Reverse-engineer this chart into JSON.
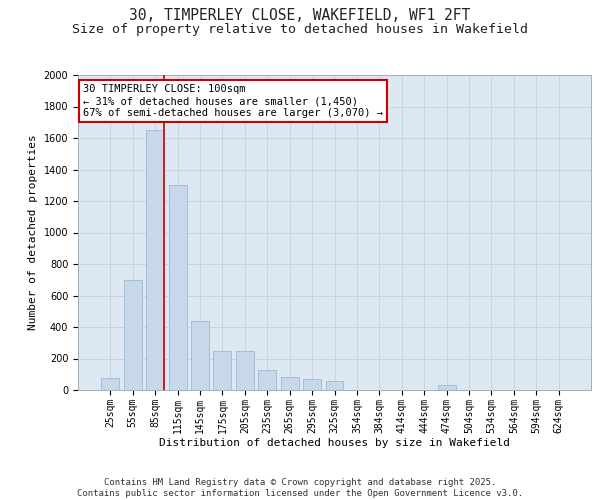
{
  "title_line1": "30, TIMPERLEY CLOSE, WAKEFIELD, WF1 2FT",
  "title_line2": "Size of property relative to detached houses in Wakefield",
  "xlabel": "Distribution of detached houses by size in Wakefield",
  "ylabel": "Number of detached properties",
  "categories": [
    "25sqm",
    "55sqm",
    "85sqm",
    "115sqm",
    "145sqm",
    "175sqm",
    "205sqm",
    "235sqm",
    "265sqm",
    "295sqm",
    "325sqm",
    "354sqm",
    "384sqm",
    "414sqm",
    "444sqm",
    "474sqm",
    "504sqm",
    "534sqm",
    "564sqm",
    "594sqm",
    "624sqm"
  ],
  "values": [
    75,
    700,
    1650,
    1300,
    440,
    250,
    250,
    130,
    80,
    70,
    55,
    0,
    0,
    0,
    0,
    30,
    0,
    0,
    0,
    0,
    0
  ],
  "bar_color": "#c8d8eb",
  "bar_edge_color": "#a0b8d0",
  "vline_x_index": 2,
  "vline_color": "#cc0000",
  "annotation_text": "30 TIMPERLEY CLOSE: 100sqm\n← 31% of detached houses are smaller (1,450)\n67% of semi-detached houses are larger (3,070) →",
  "annotation_box_color": "#ffffff",
  "annotation_box_edge": "#cc0000",
  "ylim": [
    0,
    2000
  ],
  "yticks": [
    0,
    200,
    400,
    600,
    800,
    1000,
    1200,
    1400,
    1600,
    1800,
    2000
  ],
  "grid_color": "#c8d4e0",
  "background_color": "#dce8f2",
  "footer_line1": "Contains HM Land Registry data © Crown copyright and database right 2025.",
  "footer_line2": "Contains public sector information licensed under the Open Government Licence v3.0.",
  "title_fontsize": 10.5,
  "subtitle_fontsize": 9.5,
  "axis_label_fontsize": 8,
  "tick_fontsize": 7,
  "annotation_fontsize": 7.5,
  "footer_fontsize": 6.5
}
